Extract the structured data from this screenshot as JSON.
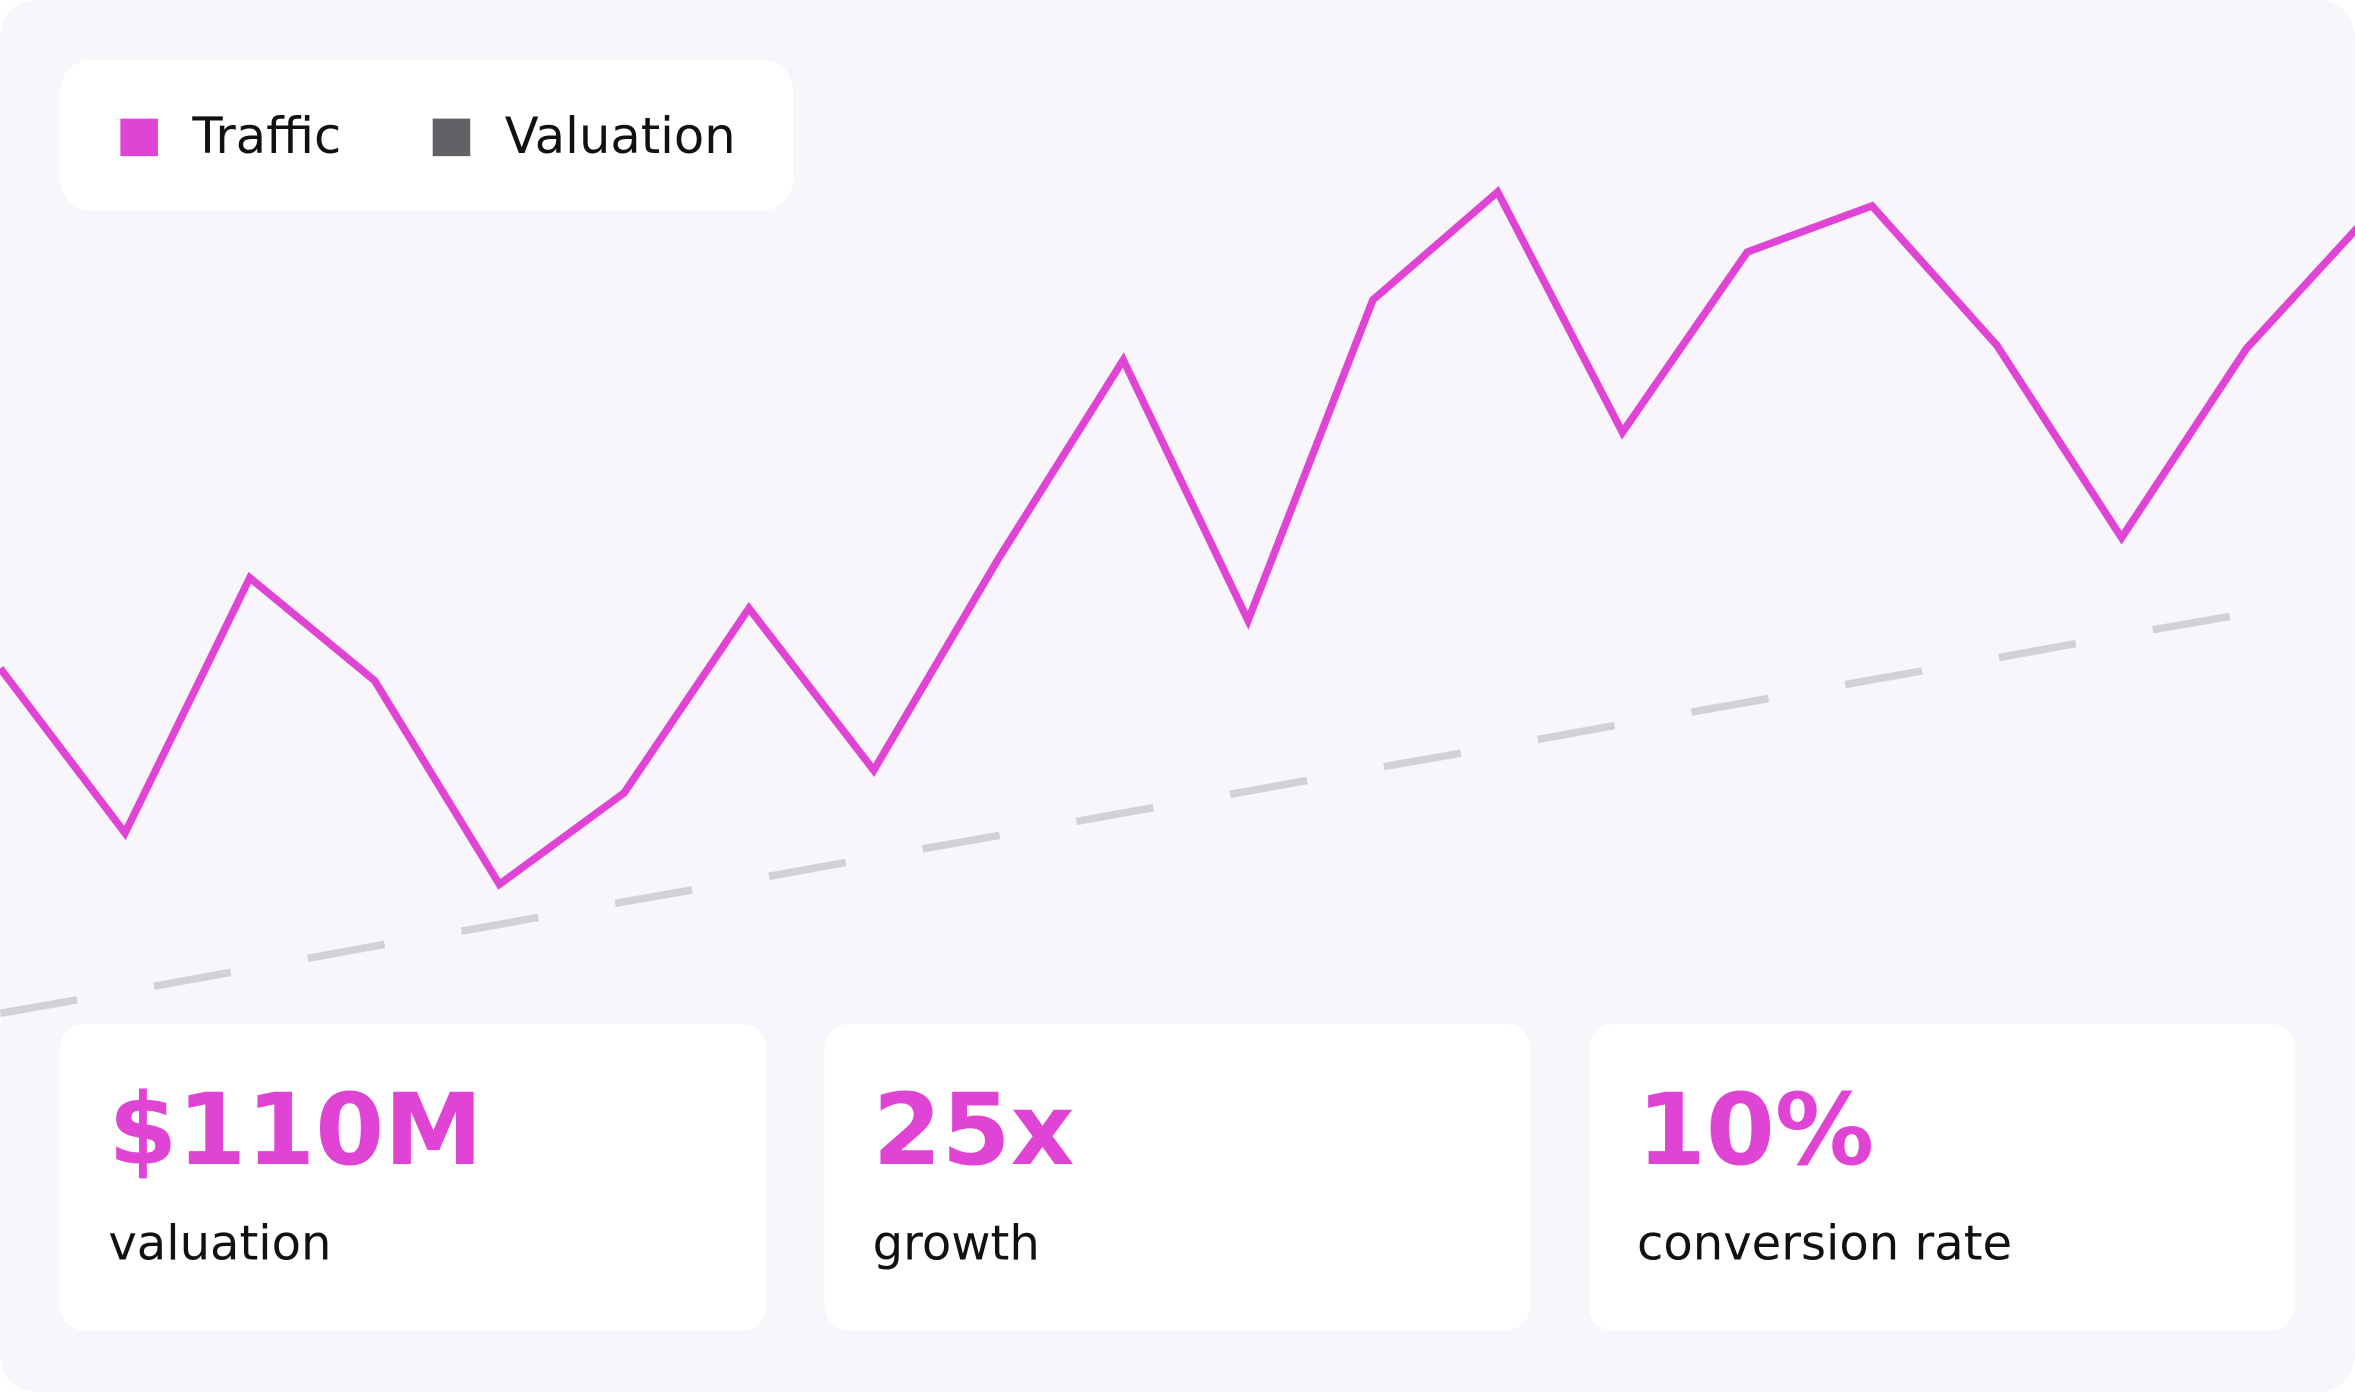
{
  "chart_data": {
    "type": "line",
    "series": [
      {
        "name": "Traffic",
        "color": "#e044d4",
        "values": [
          40.5,
          21.6,
          50.9,
          39.1,
          15.7,
          26.2,
          47.4,
          28.8,
          53.1,
          75.9,
          46.0,
          82.8,
          95.2,
          67.6,
          88.3,
          93.6,
          77.6,
          55.5,
          77.2,
          92.8
        ]
      },
      {
        "name": "Valuation",
        "color": "#636066",
        "dashed": true,
        "values": [
          0.9,
          3.4,
          6.0,
          8.6,
          11.1,
          13.7,
          16.2,
          18.8,
          21.3,
          23.9,
          26.4,
          29.0,
          31.5,
          34.1,
          36.6,
          39.2,
          41.7,
          44.3,
          46.8,
          null
        ]
      }
    ],
    "ylim": [
      0,
      100
    ]
  },
  "stats": [
    {
      "value": "$110M",
      "label": "valuation"
    },
    {
      "value": "25x",
      "label": "growth"
    },
    {
      "value": "10%",
      "label": "conversion rate"
    }
  ]
}
